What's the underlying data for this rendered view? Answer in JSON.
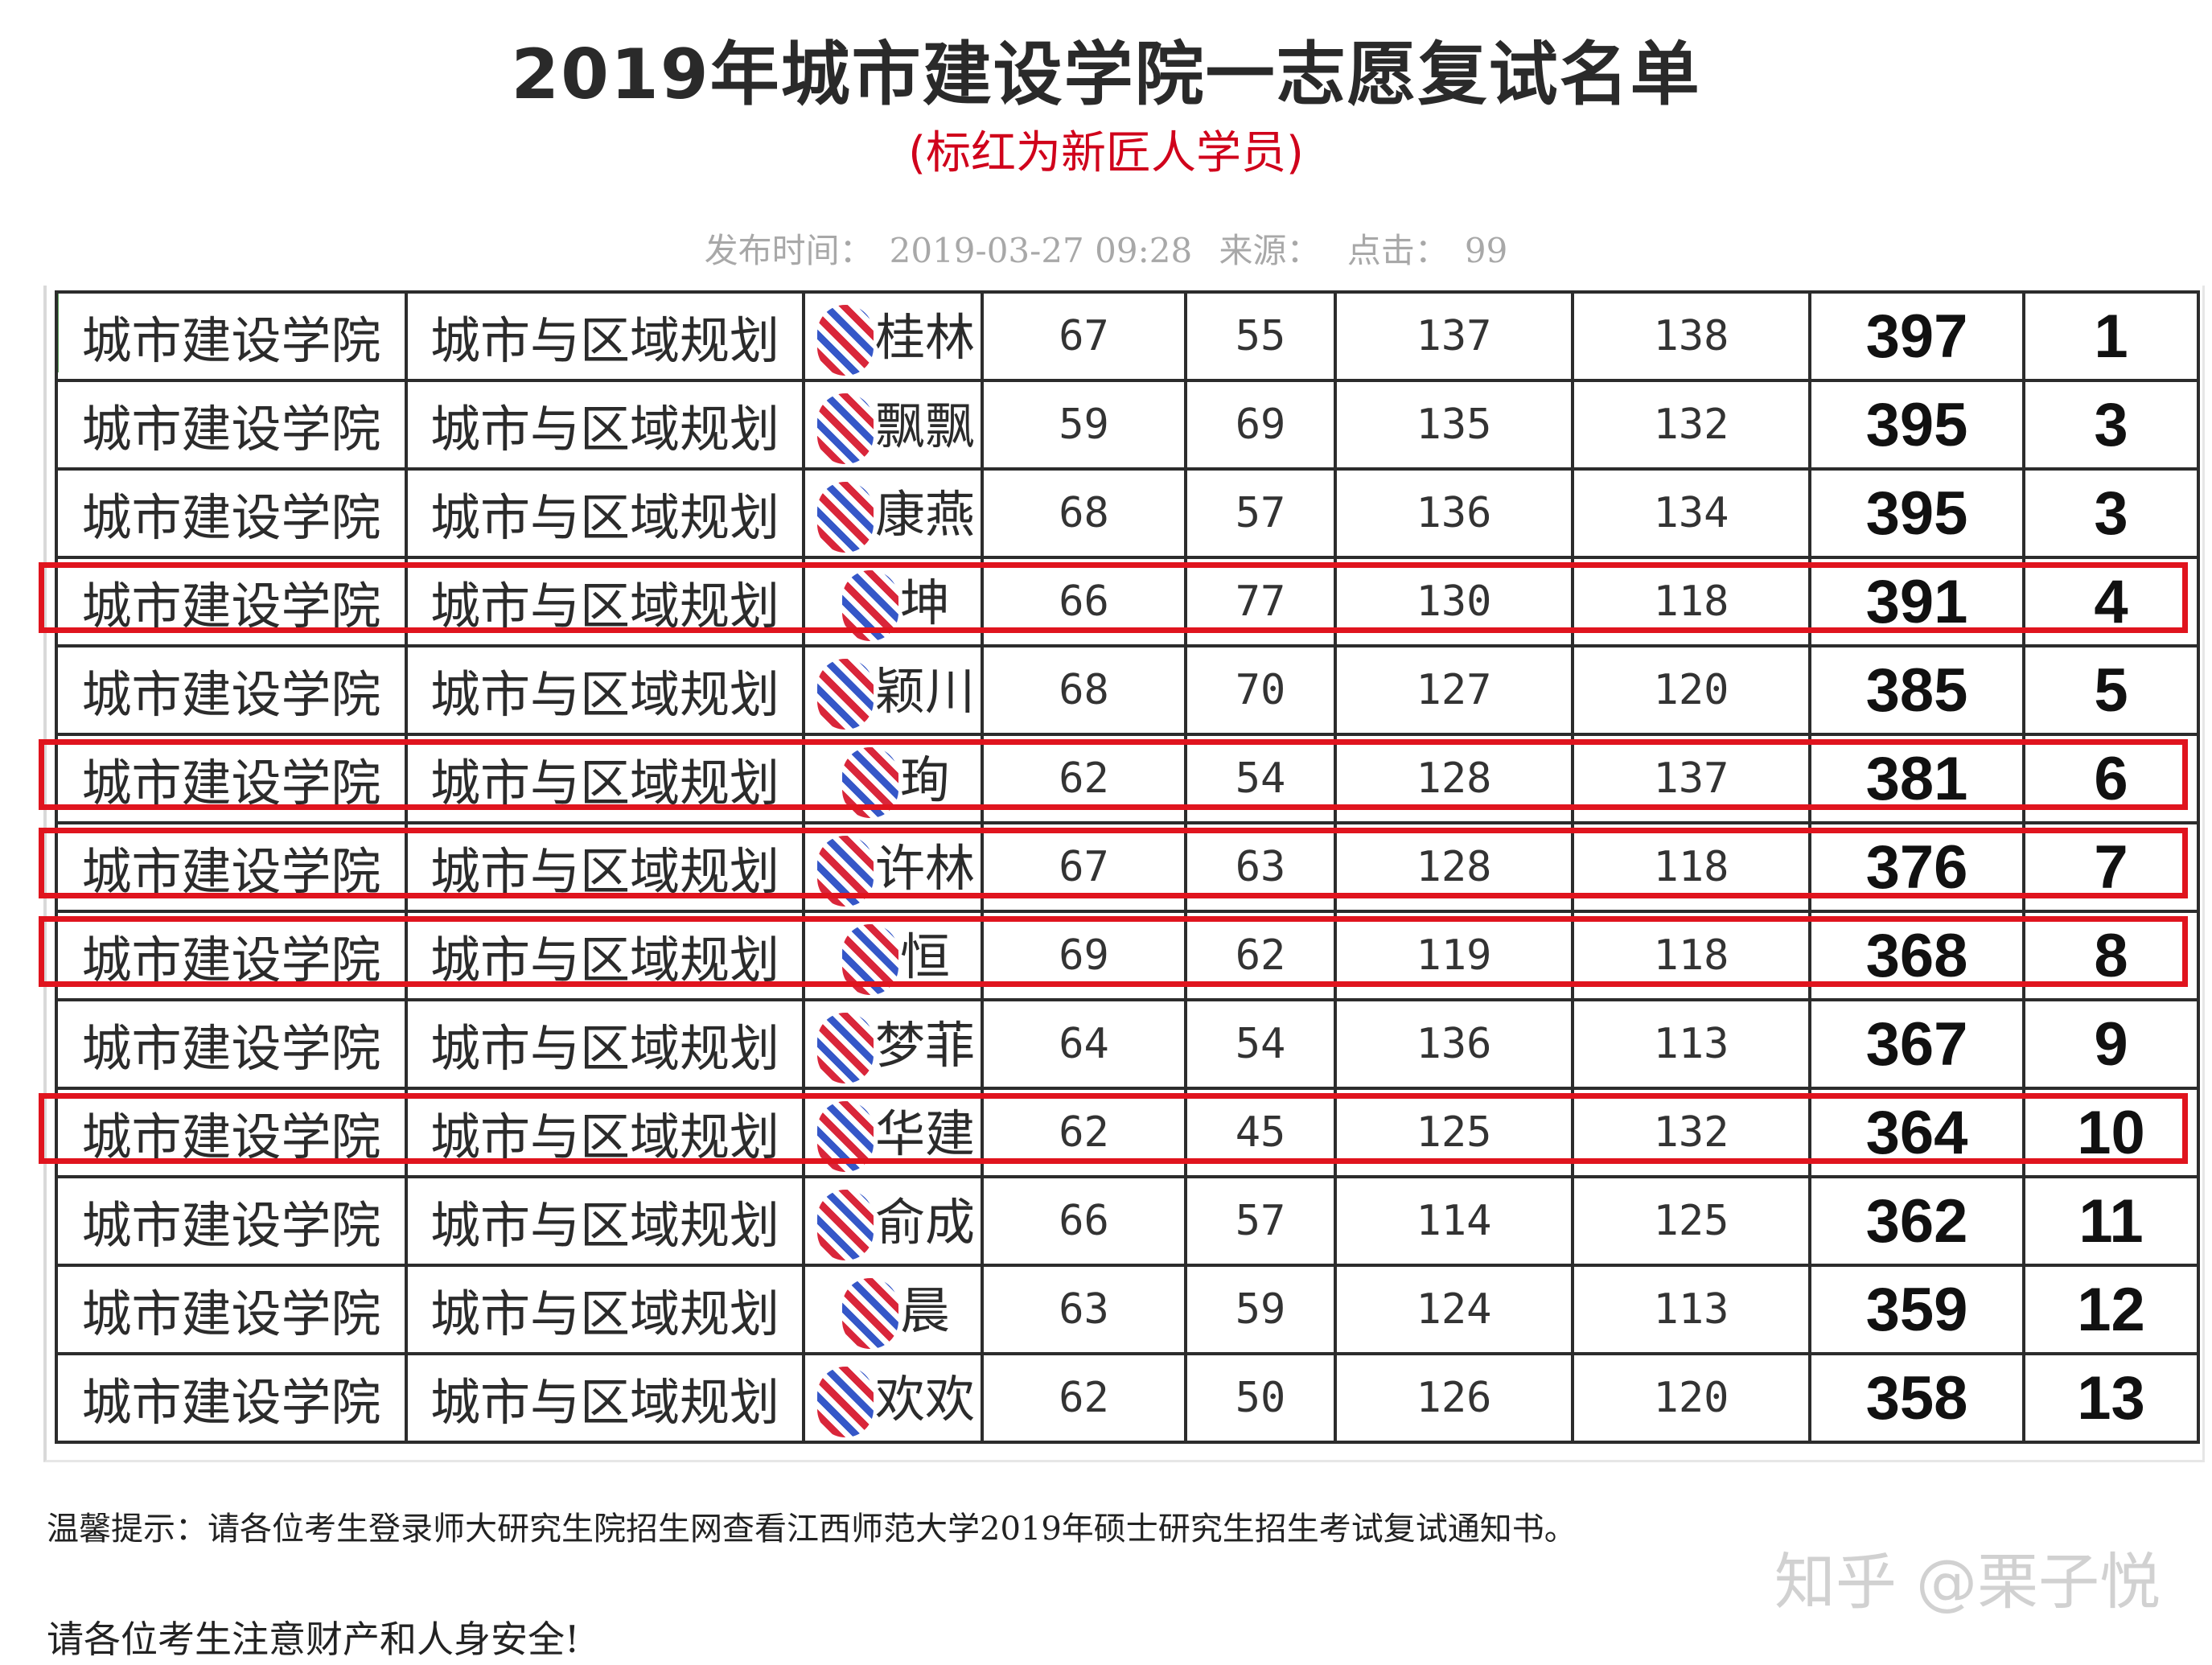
{
  "title": "2019年城市建设学院一志愿复试名单",
  "subtitle": "(标红为新匠人学员)",
  "meta": {
    "publish_label": "发布时间：",
    "publish_time": "2019-03-27 09:28",
    "source_label": "来源：",
    "clicks_label": "点击：",
    "clicks": "99"
  },
  "rows": [
    {
      "school": "城市建设学院",
      "major": "城市与区域规划",
      "name": "桂林",
      "s1": "67",
      "s2": "55",
      "s3": "137",
      "s4": "138",
      "total": "397",
      "rank": "1",
      "highlighted": false
    },
    {
      "school": "城市建设学院",
      "major": "城市与区域规划",
      "name": "飘飘",
      "s1": "59",
      "s2": "69",
      "s3": "135",
      "s4": "132",
      "total": "395",
      "rank": "3",
      "highlighted": false
    },
    {
      "school": "城市建设学院",
      "major": "城市与区域规划",
      "name": "康燕",
      "s1": "68",
      "s2": "57",
      "s3": "136",
      "s4": "134",
      "total": "395",
      "rank": "3",
      "highlighted": false
    },
    {
      "school": "城市建设学院",
      "major": "城市与区域规划",
      "name": "坤",
      "s1": "66",
      "s2": "77",
      "s3": "130",
      "s4": "118",
      "total": "391",
      "rank": "4",
      "highlighted": true
    },
    {
      "school": "城市建设学院",
      "major": "城市与区域规划",
      "name": "颖川",
      "s1": "68",
      "s2": "70",
      "s3": "127",
      "s4": "120",
      "total": "385",
      "rank": "5",
      "highlighted": false
    },
    {
      "school": "城市建设学院",
      "major": "城市与区域规划",
      "name": "珣",
      "s1": "62",
      "s2": "54",
      "s3": "128",
      "s4": "137",
      "total": "381",
      "rank": "6",
      "highlighted": true
    },
    {
      "school": "城市建设学院",
      "major": "城市与区域规划",
      "name": "许林",
      "s1": "67",
      "s2": "63",
      "s3": "128",
      "s4": "118",
      "total": "376",
      "rank": "7",
      "highlighted": true
    },
    {
      "school": "城市建设学院",
      "major": "城市与区域规划",
      "name": "恒",
      "s1": "69",
      "s2": "62",
      "s3": "119",
      "s4": "118",
      "total": "368",
      "rank": "8",
      "highlighted": true
    },
    {
      "school": "城市建设学院",
      "major": "城市与区域规划",
      "name": "梦菲",
      "s1": "64",
      "s2": "54",
      "s3": "136",
      "s4": "113",
      "total": "367",
      "rank": "9",
      "highlighted": false
    },
    {
      "school": "城市建设学院",
      "major": "城市与区域规划",
      "name": "华建",
      "s1": "62",
      "s2": "45",
      "s3": "125",
      "s4": "132",
      "total": "364",
      "rank": "10",
      "highlighted": true
    },
    {
      "school": "城市建设学院",
      "major": "城市与区域规划",
      "name": "俞成",
      "s1": "66",
      "s2": "57",
      "s3": "114",
      "s4": "125",
      "total": "362",
      "rank": "11",
      "highlighted": false
    },
    {
      "school": "城市建设学院",
      "major": "城市与区域规划",
      "name": "晨",
      "s1": "63",
      "s2": "59",
      "s3": "124",
      "s4": "113",
      "total": "359",
      "rank": "12",
      "highlighted": false
    },
    {
      "school": "城市建设学院",
      "major": "城市与区域规划",
      "name": "欢欢",
      "s1": "62",
      "s2": "50",
      "s3": "126",
      "s4": "120",
      "total": "358",
      "rank": "13",
      "highlighted": false
    }
  ],
  "notice_1": "温馨提示：请各位考生登录师大研究生院招生网查看江西师范大学2019年硕士研究生招生考试复试通知书。",
  "notice_2": "请各位考生注意财产和人身安全!",
  "watermark": "知乎 @栗子悦",
  "colors": {
    "highlight": "#e0141e",
    "subtitle": "#d0021b",
    "redaction_blue": "#3557c8",
    "redaction_red": "#d9263a"
  }
}
